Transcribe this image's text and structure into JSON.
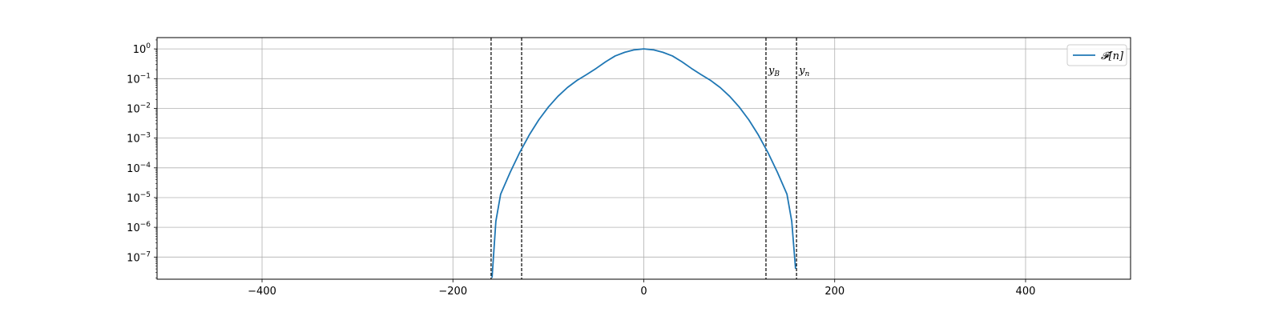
{
  "chart_data": {
    "type": "line",
    "title": "",
    "xlabel": "",
    "ylabel": "",
    "xlim": [
      -510,
      510
    ],
    "ylim": [
      1.8e-08,
      2.4
    ],
    "yscale": "log",
    "grid": true,
    "legend_placement": "top-right",
    "x_ticks": [
      {
        "value": -400,
        "label": "−400"
      },
      {
        "value": -200,
        "label": "−200"
      },
      {
        "value": 0,
        "label": "0"
      },
      {
        "value": 200,
        "label": "200"
      },
      {
        "value": 400,
        "label": "400"
      }
    ],
    "y_ticks": [
      {
        "value": 1,
        "base": "10",
        "exp": "0"
      },
      {
        "value": 0.1,
        "base": "10",
        "exp": "−1"
      },
      {
        "value": 0.01,
        "base": "10",
        "exp": "−2"
      },
      {
        "value": 0.001,
        "base": "10",
        "exp": "−3"
      },
      {
        "value": 0.0001,
        "base": "10",
        "exp": "−4"
      },
      {
        "value": 1e-05,
        "base": "10",
        "exp": "−5"
      },
      {
        "value": 1e-06,
        "base": "10",
        "exp": "−6"
      },
      {
        "value": 1e-07,
        "base": "10",
        "exp": "−7"
      }
    ],
    "series": [
      {
        "name": "𝓕[n]",
        "color": "#1f77b4",
        "x": [
          -159,
          -155,
          -150,
          -140,
          -130,
          -120,
          -110,
          -100,
          -90,
          -80,
          -70,
          -60,
          -50,
          -40,
          -30,
          -20,
          -10,
          0,
          10,
          20,
          30,
          40,
          50,
          60,
          70,
          80,
          90,
          100,
          110,
          120,
          130,
          140,
          150,
          155,
          159
        ],
        "y": [
          2e-08,
          1.6e-06,
          1.3e-05,
          7.1e-05,
          0.00033,
          0.00128,
          0.00413,
          0.0111,
          0.0254,
          0.0504,
          0.0873,
          0.137,
          0.22,
          0.369,
          0.58,
          0.77,
          0.93,
          1.0,
          0.93,
          0.77,
          0.58,
          0.369,
          0.22,
          0.137,
          0.0873,
          0.0504,
          0.0254,
          0.0111,
          0.00413,
          0.00128,
          0.00033,
          7.1e-05,
          1.3e-05,
          1.6e-06,
          4e-08
        ]
      }
    ],
    "vertical_lines": [
      {
        "x": -160,
        "label": ""
      },
      {
        "x": -128,
        "label": ""
      },
      {
        "x": 128,
        "label": "y",
        "subscript": "B"
      },
      {
        "x": 160,
        "label": "y",
        "subscript": "n"
      }
    ],
    "annotation_y": 0.2
  }
}
